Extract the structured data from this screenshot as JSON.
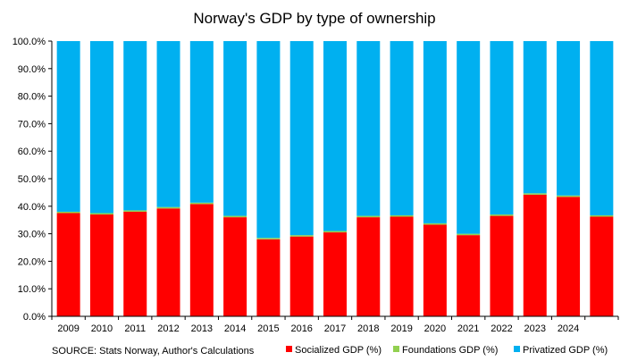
{
  "chart_data": {
    "type": "bar",
    "stacked": true,
    "title": "Norway's GDP by type of ownership",
    "categories": [
      "2009",
      "2010",
      "2011",
      "2012",
      "2013",
      "2014",
      "2015",
      "2016",
      "2017",
      "2018",
      "2019",
      "2020",
      "2021",
      "2022",
      "2023",
      "2024",
      ""
    ],
    "series": [
      {
        "name": "Socialized GDP (%)",
        "color": "#ff0000",
        "values": [
          37.5,
          37.0,
          38.0,
          39.2,
          40.8,
          36.0,
          28.0,
          29.0,
          30.5,
          36.0,
          36.2,
          33.3,
          29.5,
          36.5,
          44.2,
          43.4,
          36.2
        ]
      },
      {
        "name": "Foundations GDP (%)",
        "color": "#92d050",
        "values": [
          0.5,
          0.5,
          0.5,
          0.5,
          0.5,
          0.5,
          0.5,
          0.5,
          0.5,
          0.5,
          0.5,
          0.5,
          0.5,
          0.5,
          0.5,
          0.5,
          0.5
        ]
      },
      {
        "name": "Privatized GDP (%)",
        "color": "#00b0f0",
        "values": [
          62.0,
          62.5,
          61.5,
          60.3,
          58.7,
          63.5,
          71.5,
          70.5,
          69.0,
          63.5,
          63.3,
          66.2,
          70.0,
          63.0,
          55.3,
          56.1,
          63.3
        ]
      }
    ],
    "yticks": [
      "0.0%",
      "10.0%",
      "20.0%",
      "30.0%",
      "40.0%",
      "50.0%",
      "60.0%",
      "70.0%",
      "80.0%",
      "90.0%",
      "100.0%"
    ],
    "ylim": [
      0,
      100
    ],
    "xlabel": "",
    "ylabel": "",
    "legend": "bottom-right",
    "grid": false
  },
  "source": "SOURCE: Stats Norway, Author's Calculations"
}
